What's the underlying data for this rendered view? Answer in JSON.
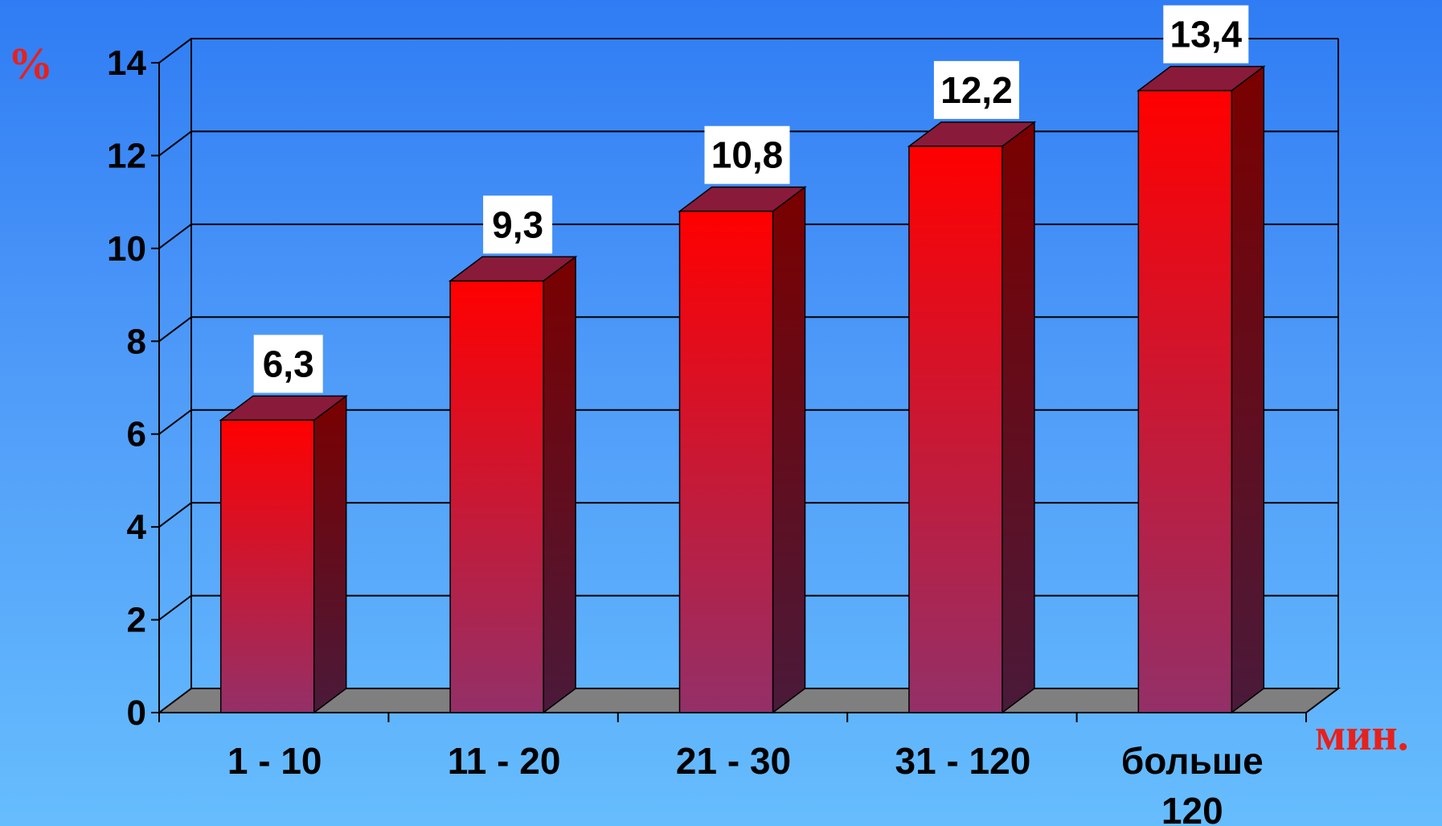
{
  "chart_data": {
    "type": "bar",
    "categories": [
      "1 - 10",
      "11 - 20",
      "21 - 30",
      "31 - 120",
      "больше 120"
    ],
    "category_lines": [
      [
        "1 - 10"
      ],
      [
        "11 - 20"
      ],
      [
        "21 - 30"
      ],
      [
        "31 - 120"
      ],
      [
        "больше",
        "120"
      ]
    ],
    "values": [
      6.3,
      9.3,
      10.8,
      12.2,
      13.4
    ],
    "value_labels": [
      "6,3",
      "9,3",
      "10,8",
      "12,2",
      "13,4"
    ],
    "title": "",
    "ylabel": "%",
    "xlabel": "мин.",
    "ylim": [
      0,
      14
    ],
    "yticks": [
      0,
      2,
      4,
      6,
      8,
      10,
      12,
      14
    ],
    "grid": true,
    "style": "3d",
    "colors": {
      "bar_top": "#ff0000",
      "bar_bottom": "#933068",
      "bar_side_top": "#7a0000",
      "bar_side_bottom": "#4a1a3a",
      "floor": "#7f7f7f",
      "axis_unit": "#e8201c",
      "label_box": "#ffffff"
    }
  }
}
